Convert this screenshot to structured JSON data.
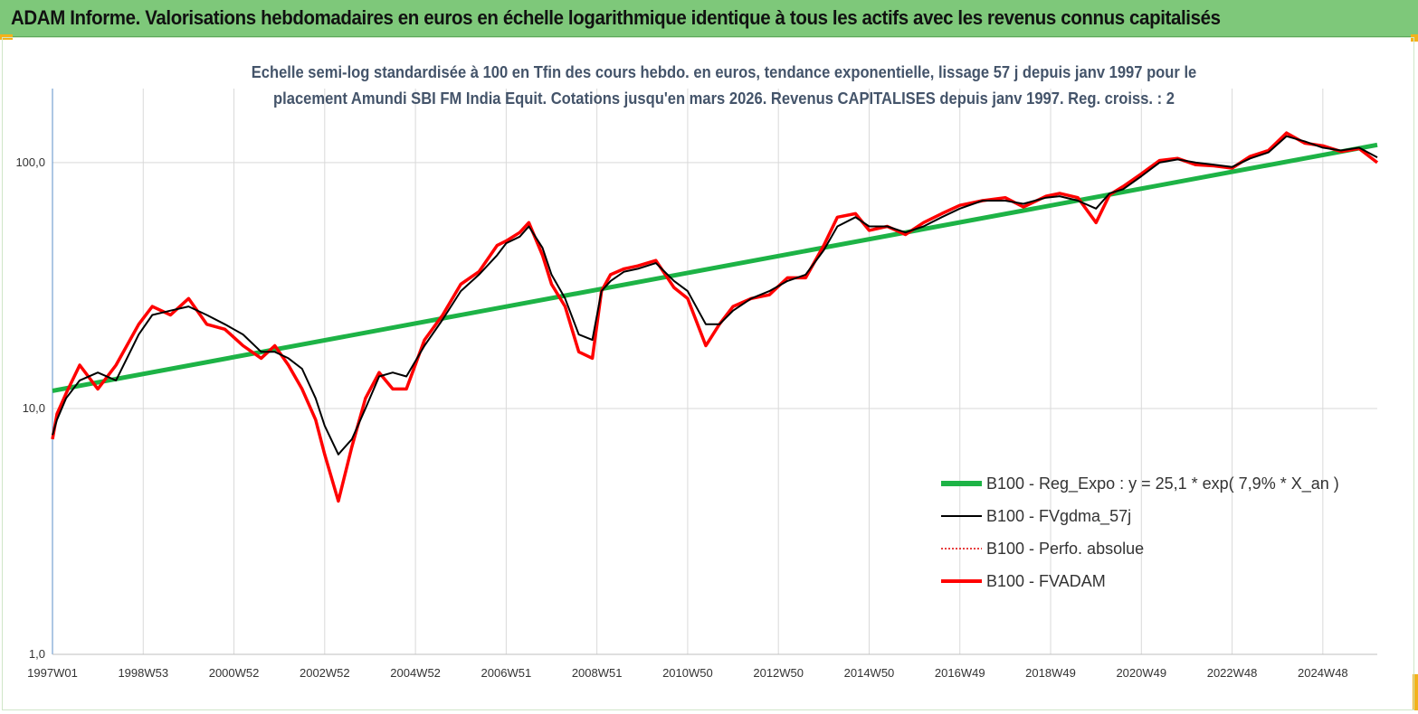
{
  "banner": {
    "title": "ADAM Informe. Valorisations hebdomadaires en euros en échelle logarithmique identique à tous les actifs avec les revenus connus capitalisés"
  },
  "subtitle": {
    "line1": "Echelle semi-log standardisée à 100 en Tfin des cours hebdo. en euros, tendance exponentielle, lissage 57 j depuis janv 1997 pour le",
    "line2": "placement Amundi SBI FM India Equit. Cotations jusqu'en mars 2026. Revenus CAPITALISES depuis janv 1997. Reg. croiss. : 2"
  },
  "colors": {
    "banner": "#7ec87a",
    "regression": "#1db346",
    "smoothed": "#000000",
    "absolute": "#e00000",
    "fvadam": "#ff0000",
    "grid": "#d9d9d9"
  },
  "chart_data": {
    "type": "line",
    "y_scale": "log",
    "ylim": [
      1,
      200
    ],
    "grid": "vertical and horizontal major gridlines",
    "legend_position": "bottom-right",
    "y_ticks": [
      "1,0",
      "10,0",
      "100,0"
    ],
    "y_tick_values": [
      1,
      10,
      100
    ],
    "x_ticks": [
      "1997W01",
      "1998W53",
      "2000W52",
      "2002W52",
      "2004W52",
      "2006W51",
      "2008W51",
      "2010W50",
      "2012W50",
      "2014W50",
      "2016W49",
      "2018W49",
      "2020W49",
      "2022W48",
      "2024W48"
    ],
    "x_tick_years": [
      1997.0,
      1999.0,
      2001.0,
      2003.0,
      2005.0,
      2007.0,
      2009.0,
      2011.0,
      2013.0,
      2015.0,
      2017.0,
      2019.0,
      2021.0,
      2023.0,
      2025.0
    ],
    "x_range_years": [
      1997.0,
      2026.2
    ],
    "series": [
      {
        "name": "B100 - Reg_Expo : y = 25,1 * exp( 7,9% *  X_an )",
        "style": "thick-solid",
        "color": "#1db346",
        "x": [
          1997.0,
          2026.2
        ],
        "y": [
          11.8,
          118
        ]
      },
      {
        "name": "B100 - FVgdma_57j",
        "style": "thin-solid",
        "color": "#000000",
        "x": [
          1997.0,
          1997.1,
          1997.3,
          1997.6,
          1998.0,
          1998.4,
          1998.9,
          1999.2,
          1999.6,
          2000.0,
          2000.4,
          2000.8,
          2001.2,
          2001.6,
          2001.9,
          2002.2,
          2002.5,
          2002.8,
          2003.0,
          2003.3,
          2003.6,
          2003.9,
          2004.2,
          2004.5,
          2004.8,
          2005.2,
          2005.6,
          2006.0,
          2006.4,
          2006.8,
          2007.0,
          2007.3,
          2007.5,
          2007.8,
          2008.0,
          2008.3,
          2008.6,
          2008.9,
          2009.1,
          2009.3,
          2009.6,
          2009.9,
          2010.3,
          2010.7,
          2011.0,
          2011.4,
          2011.7,
          2012.0,
          2012.4,
          2012.8,
          2013.2,
          2013.6,
          2014.0,
          2014.3,
          2014.7,
          2015.0,
          2015.4,
          2015.8,
          2016.2,
          2016.6,
          2017.0,
          2017.5,
          2018.0,
          2018.4,
          2018.9,
          2019.2,
          2019.6,
          2020.0,
          2020.3,
          2020.6,
          2021.0,
          2021.4,
          2021.8,
          2022.2,
          2022.6,
          2023.0,
          2023.4,
          2023.8,
          2024.2,
          2024.6,
          2025.0,
          2025.4,
          2025.8,
          2026.2
        ],
        "y": [
          7.8,
          9,
          11,
          13,
          14,
          13,
          20,
          24,
          25,
          26,
          24,
          22,
          20,
          17,
          17,
          16,
          14.5,
          11,
          8.5,
          6.5,
          7.5,
          10,
          13.5,
          14,
          13.5,
          18,
          23,
          30,
          35,
          42,
          47,
          50,
          55,
          45,
          35,
          28,
          20,
          19,
          30,
          33,
          36,
          37,
          39,
          33,
          30,
          22,
          22,
          25,
          28,
          30,
          33,
          35,
          44,
          55,
          60,
          55,
          55,
          52,
          55,
          60,
          65,
          70,
          70,
          68,
          72,
          73,
          70,
          65,
          75,
          78,
          88,
          100,
          103,
          100,
          98,
          96,
          104,
          110,
          128,
          122,
          115,
          112,
          115,
          105
        ]
      },
      {
        "name": "B100 - Perfo. absolue",
        "style": "dotted",
        "color": "#e00000",
        "x": [
          1997.0,
          1997.1,
          1997.3,
          1997.6,
          1998.0,
          1998.4,
          1998.9,
          1999.2,
          1999.6,
          2000.0,
          2000.4,
          2000.8,
          2001.2,
          2001.6,
          2001.9,
          2002.2,
          2002.5,
          2002.8,
          2003.0,
          2003.3,
          2003.6,
          2003.9,
          2004.2,
          2004.5,
          2004.8,
          2005.2,
          2005.6,
          2006.0,
          2006.4,
          2006.8,
          2007.0,
          2007.3,
          2007.5,
          2007.8,
          2008.0,
          2008.3,
          2008.6,
          2008.9,
          2009.1,
          2009.3,
          2009.6,
          2009.9,
          2010.3,
          2010.7,
          2011.0,
          2011.4,
          2011.7,
          2012.0,
          2012.4,
          2012.8,
          2013.2,
          2013.6,
          2014.0,
          2014.3,
          2014.7,
          2015.0,
          2015.4,
          2015.8,
          2016.2,
          2016.6,
          2017.0,
          2017.5,
          2018.0,
          2018.4,
          2018.9,
          2019.2,
          2019.6,
          2020.0,
          2020.3,
          2020.6,
          2021.0,
          2021.4,
          2021.8,
          2022.2,
          2022.6,
          2023.0,
          2023.4,
          2023.8,
          2024.2,
          2024.6,
          2025.0,
          2025.4,
          2025.8,
          2026.2
        ],
        "y": [
          7.5,
          9.5,
          11.5,
          15,
          12,
          15,
          22,
          26,
          24,
          28,
          22,
          21,
          18,
          16,
          18,
          15,
          12,
          9,
          6.5,
          4.2,
          7,
          11,
          14,
          12,
          12,
          19,
          24,
          32,
          36,
          46,
          48,
          52,
          57,
          42,
          32,
          26,
          17,
          16,
          30,
          35,
          37,
          38,
          40,
          31,
          28,
          18,
          22,
          26,
          28,
          29,
          34,
          34,
          46,
          60,
          62,
          53,
          55,
          51,
          57,
          62,
          67,
          70,
          72,
          66,
          73,
          75,
          72,
          57,
          74,
          80,
          90,
          102,
          104,
          98,
          97,
          95,
          106,
          112,
          132,
          120,
          117,
          111,
          114,
          100
        ]
      },
      {
        "name": "B100 - FVADAM",
        "style": "thick-solid",
        "color": "#ff0000",
        "x": [
          1997.0,
          1997.1,
          1997.3,
          1997.6,
          1998.0,
          1998.4,
          1998.9,
          1999.2,
          1999.6,
          2000.0,
          2000.4,
          2000.8,
          2001.2,
          2001.6,
          2001.9,
          2002.2,
          2002.5,
          2002.8,
          2003.0,
          2003.3,
          2003.6,
          2003.9,
          2004.2,
          2004.5,
          2004.8,
          2005.2,
          2005.6,
          2006.0,
          2006.4,
          2006.8,
          2007.0,
          2007.3,
          2007.5,
          2007.8,
          2008.0,
          2008.3,
          2008.6,
          2008.9,
          2009.1,
          2009.3,
          2009.6,
          2009.9,
          2010.3,
          2010.7,
          2011.0,
          2011.4,
          2011.7,
          2012.0,
          2012.4,
          2012.8,
          2013.2,
          2013.6,
          2014.0,
          2014.3,
          2014.7,
          2015.0,
          2015.4,
          2015.8,
          2016.2,
          2016.6,
          2017.0,
          2017.5,
          2018.0,
          2018.4,
          2018.9,
          2019.2,
          2019.6,
          2020.0,
          2020.3,
          2020.6,
          2021.0,
          2021.4,
          2021.8,
          2022.2,
          2022.6,
          2023.0,
          2023.4,
          2023.8,
          2024.2,
          2024.6,
          2025.0,
          2025.4,
          2025.8,
          2026.2
        ],
        "y": [
          7.5,
          9.5,
          11.5,
          15,
          12,
          15,
          22,
          26,
          24,
          28,
          22,
          21,
          18,
          16,
          18,
          15,
          12,
          9,
          6.5,
          4.2,
          7,
          11,
          14,
          12,
          12,
          19,
          24,
          32,
          36,
          46,
          48,
          52,
          57,
          42,
          32,
          26,
          17,
          16,
          30,
          35,
          37,
          38,
          40,
          31,
          28,
          18,
          22,
          26,
          28,
          29,
          34,
          34,
          46,
          60,
          62,
          53,
          55,
          51,
          57,
          62,
          67,
          70,
          72,
          66,
          73,
          75,
          72,
          57,
          74,
          80,
          90,
          102,
          104,
          98,
          97,
          95,
          106,
          112,
          132,
          120,
          117,
          111,
          114,
          100
        ]
      }
    ]
  }
}
